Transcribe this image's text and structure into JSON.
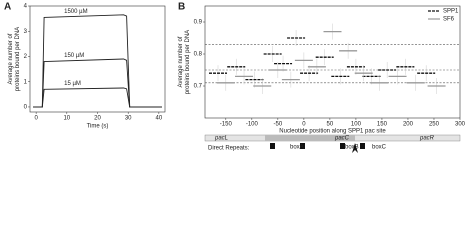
{
  "chart_data": [
    {
      "type": "line",
      "panel_label": "A",
      "ylabel": [
        "Average number of",
        "proteins bound per DNA"
      ],
      "xlabel": "Time (s)",
      "x": [
        -1,
        2,
        2.6,
        28.5,
        29.5,
        30.5,
        41
      ],
      "series": [
        {
          "name": "1500 µM",
          "color": "#222222",
          "values": [
            0,
            0,
            3.55,
            3.65,
            3.6,
            0,
            0
          ]
        },
        {
          "name": "150 µM",
          "color": "#222222",
          "values": [
            0,
            0,
            1.8,
            1.9,
            1.85,
            0,
            0
          ]
        },
        {
          "name": "15 µM",
          "color": "#222222",
          "values": [
            0,
            0,
            0.7,
            0.75,
            0.72,
            0,
            0
          ]
        }
      ],
      "xlim": [
        -2,
        42
      ],
      "xticks": [
        0,
        10,
        20,
        30,
        40
      ],
      "ylim": [
        -0.2,
        4
      ],
      "yticks": [
        0,
        1,
        2,
        3,
        4
      ]
    },
    {
      "type": "segment",
      "panel_label": "B",
      "ylabel": [
        "Average number of",
        "proteins bound per DNA"
      ],
      "xlabel": [
        "Nucleotide position along SPP1 pac site",
        "sequence (1 indicates ORF start nt)"
      ],
      "series": [
        {
          "name": "SPP1",
          "color": "#111111",
          "x": [
            -165,
            -130,
            -95,
            -60,
            -40,
            -15,
            10,
            40,
            70,
            100,
            130,
            160,
            195,
            235
          ],
          "values": [
            0.74,
            0.76,
            0.72,
            0.8,
            0.77,
            0.85,
            0.74,
            0.79,
            0.73,
            0.76,
            0.73,
            0.75,
            0.76,
            0.74
          ]
        },
        {
          "name": "SF6",
          "color": "#999999",
          "x": [
            -150,
            -115,
            -80,
            -50,
            -25,
            0,
            25,
            55,
            85,
            115,
            145,
            180,
            215,
            255
          ],
          "values": [
            0.71,
            0.73,
            0.7,
            0.75,
            0.72,
            0.78,
            0.76,
            0.87,
            0.81,
            0.74,
            0.71,
            0.73,
            0.71,
            0.7
          ]
        }
      ],
      "ref_lines": [
        0.83,
        0.75,
        0.71
      ],
      "xlim": [
        -190,
        300
      ],
      "xticks": [
        -150,
        -100,
        -50,
        0,
        50,
        100,
        150,
        200,
        250,
        300
      ],
      "ylim": [
        0.6,
        0.95
      ],
      "yticks": [
        0.7,
        0.8,
        0.9
      ]
    }
  ],
  "diagram": {
    "title": "Direct Repeats:",
    "regions": [
      "pacL",
      "pacC",
      "pacR"
    ],
    "boxes": [
      "boxA",
      "boxB",
      "boxC"
    ]
  }
}
